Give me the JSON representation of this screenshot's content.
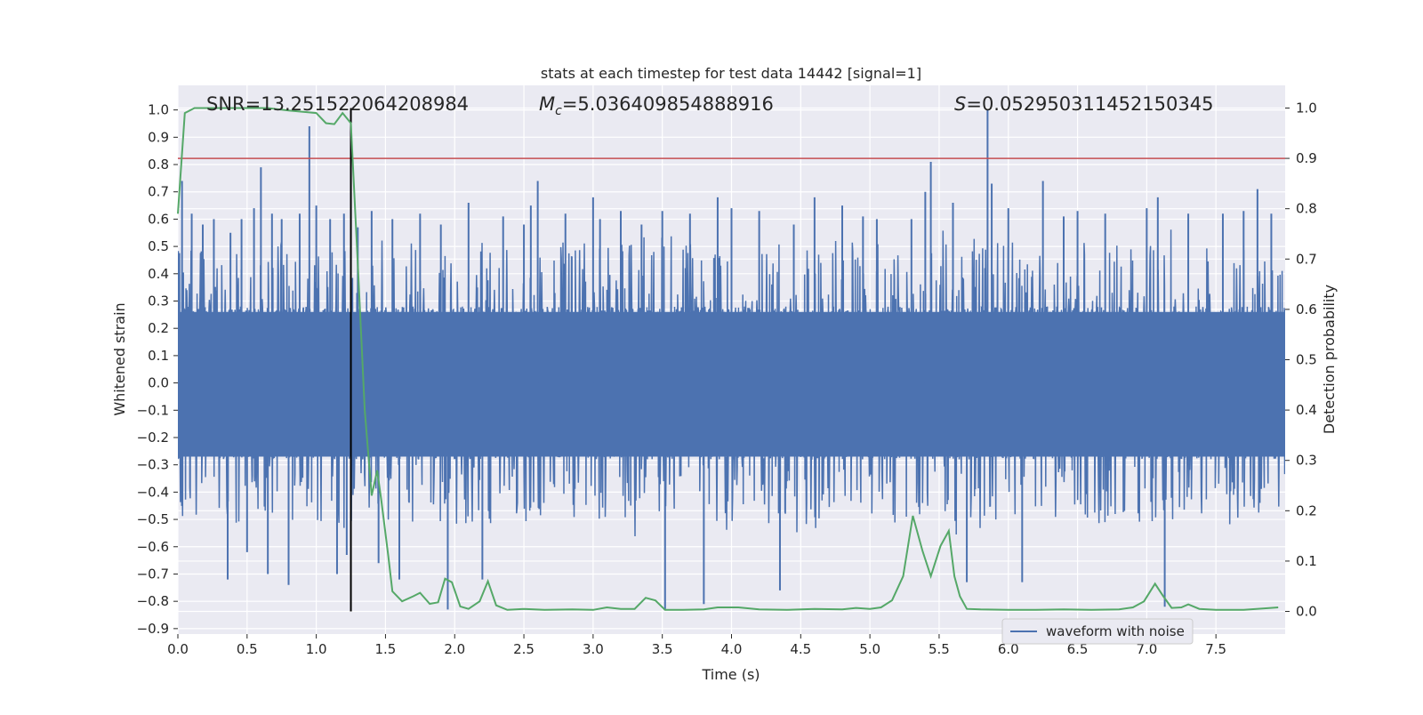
{
  "chart_data": {
    "type": "line",
    "title": "stats at each timestep for test data 14442 [signal=1]",
    "xlabel": "Time (s)",
    "ylabel": "Whitened strain",
    "y2label": "Detection probability",
    "xlim": [
      0,
      8.0
    ],
    "ylim": [
      -0.92,
      1.09
    ],
    "y2lim": [
      -0.045,
      1.045
    ],
    "xticks": [
      "0.0",
      "0.5",
      "1.0",
      "1.5",
      "2.0",
      "2.5",
      "3.0",
      "3.5",
      "4.0",
      "4.5",
      "5.0",
      "5.5",
      "6.0",
      "6.5",
      "7.0",
      "7.5"
    ],
    "yticks": [
      "1.0",
      "0.9",
      "0.8",
      "0.7",
      "0.6",
      "0.5",
      "0.4",
      "0.3",
      "0.2",
      "0.1",
      "0.0",
      "−0.1",
      "−0.2",
      "−0.3",
      "−0.4",
      "−0.5",
      "−0.6",
      "−0.7",
      "−0.8",
      "−0.9"
    ],
    "y2ticks": [
      "1.0",
      "0.9",
      "0.8",
      "0.7",
      "0.6",
      "0.5",
      "0.4",
      "0.3",
      "0.2",
      "0.1",
      "0.0"
    ],
    "grid": true,
    "legend_position": "lower-right",
    "annotations": {
      "snr": "SNR=13.251522064208984",
      "mc_symbol": "M",
      "mc_subscript": "c",
      "mc_value": "=5.036409854888916",
      "s_symbol": "S",
      "s_value": "=0.052950311452150345"
    },
    "threshold": {
      "value": 0.9,
      "axis": "right",
      "color": "#c44e52"
    },
    "event_time": 1.25,
    "series": [
      {
        "name": "waveform with noise",
        "color": "#4c72b0",
        "style": "dense noisy strain, core band about -0.28 to 0.27 with spikes",
        "spikes": [
          [
            0.03,
            0.74
          ],
          [
            0.1,
            0.62
          ],
          [
            0.18,
            0.58
          ],
          [
            0.26,
            0.6
          ],
          [
            0.36,
            -0.72
          ],
          [
            0.38,
            0.55
          ],
          [
            0.46,
            0.6
          ],
          [
            0.5,
            -0.62
          ],
          [
            0.55,
            0.64
          ],
          [
            0.6,
            0.79
          ],
          [
            0.65,
            -0.7
          ],
          [
            0.68,
            0.62
          ],
          [
            0.75,
            0.6
          ],
          [
            0.8,
            -0.74
          ],
          [
            0.88,
            0.62
          ],
          [
            0.95,
            0.94
          ],
          [
            1.0,
            0.65
          ],
          [
            1.1,
            0.6
          ],
          [
            1.15,
            -0.7
          ],
          [
            1.2,
            0.62
          ],
          [
            1.22,
            -0.63
          ],
          [
            1.3,
            0.57
          ],
          [
            1.4,
            0.63
          ],
          [
            1.45,
            -0.66
          ],
          [
            1.55,
            0.6
          ],
          [
            1.6,
            -0.72
          ],
          [
            1.75,
            0.62
          ],
          [
            1.9,
            0.58
          ],
          [
            1.95,
            -0.83
          ],
          [
            2.1,
            0.66
          ],
          [
            2.2,
            -0.72
          ],
          [
            2.35,
            0.61
          ],
          [
            2.5,
            0.58
          ],
          [
            2.55,
            0.65
          ],
          [
            2.6,
            0.74
          ],
          [
            2.8,
            0.62
          ],
          [
            3.0,
            0.68
          ],
          [
            3.05,
            0.6
          ],
          [
            3.2,
            0.63
          ],
          [
            3.35,
            0.58
          ],
          [
            3.5,
            0.63
          ],
          [
            3.52,
            -0.83
          ],
          [
            3.7,
            0.62
          ],
          [
            3.8,
            -0.81
          ],
          [
            3.9,
            0.68
          ],
          [
            4.0,
            0.64
          ],
          [
            4.2,
            0.63
          ],
          [
            4.35,
            -0.76
          ],
          [
            4.45,
            0.58
          ],
          [
            4.6,
            0.68
          ],
          [
            4.8,
            0.65
          ],
          [
            4.95,
            0.61
          ],
          [
            5.05,
            0.6
          ],
          [
            5.3,
            0.6
          ],
          [
            5.4,
            0.7
          ],
          [
            5.44,
            0.81
          ],
          [
            5.6,
            0.66
          ],
          [
            5.7,
            -0.73
          ],
          [
            5.85,
            1.0
          ],
          [
            5.88,
            0.73
          ],
          [
            6.0,
            0.64
          ],
          [
            6.1,
            -0.73
          ],
          [
            6.25,
            0.74
          ],
          [
            6.4,
            0.61
          ],
          [
            6.5,
            0.63
          ],
          [
            6.7,
            0.62
          ],
          [
            7.0,
            0.64
          ],
          [
            7.08,
            0.68
          ],
          [
            7.13,
            -0.82
          ],
          [
            7.3,
            0.62
          ],
          [
            7.55,
            0.62
          ],
          [
            7.7,
            0.63
          ],
          [
            7.8,
            0.71
          ],
          [
            7.9,
            0.62
          ]
        ]
      },
      {
        "name": "",
        "color": "#55a868",
        "axis": "right",
        "points": [
          [
            0.0,
            0.79
          ],
          [
            0.05,
            0.99
          ],
          [
            0.12,
            1.0
          ],
          [
            0.25,
            1.0
          ],
          [
            0.5,
            1.0
          ],
          [
            0.65,
            1.0
          ],
          [
            0.8,
            0.995
          ],
          [
            1.0,
            0.99
          ],
          [
            1.07,
            0.97
          ],
          [
            1.13,
            0.968
          ],
          [
            1.19,
            0.99
          ],
          [
            1.25,
            0.97
          ],
          [
            1.3,
            0.69
          ],
          [
            1.35,
            0.4
          ],
          [
            1.4,
            0.23
          ],
          [
            1.44,
            0.28
          ],
          [
            1.47,
            0.22
          ],
          [
            1.52,
            0.11
          ],
          [
            1.55,
            0.04
          ],
          [
            1.62,
            0.02
          ],
          [
            1.7,
            0.03
          ],
          [
            1.75,
            0.037
          ],
          [
            1.82,
            0.015
          ],
          [
            1.88,
            0.018
          ],
          [
            1.93,
            0.065
          ],
          [
            1.98,
            0.058
          ],
          [
            2.04,
            0.01
          ],
          [
            2.1,
            0.005
          ],
          [
            2.18,
            0.02
          ],
          [
            2.24,
            0.06
          ],
          [
            2.3,
            0.012
          ],
          [
            2.38,
            0.003
          ],
          [
            2.5,
            0.005
          ],
          [
            2.65,
            0.003
          ],
          [
            2.85,
            0.004
          ],
          [
            3.0,
            0.003
          ],
          [
            3.1,
            0.008
          ],
          [
            3.2,
            0.005
          ],
          [
            3.3,
            0.005
          ],
          [
            3.38,
            0.027
          ],
          [
            3.45,
            0.022
          ],
          [
            3.52,
            0.003
          ],
          [
            3.65,
            0.003
          ],
          [
            3.8,
            0.004
          ],
          [
            3.9,
            0.008
          ],
          [
            4.05,
            0.008
          ],
          [
            4.2,
            0.004
          ],
          [
            4.4,
            0.003
          ],
          [
            4.6,
            0.005
          ],
          [
            4.8,
            0.004
          ],
          [
            4.9,
            0.007
          ],
          [
            5.0,
            0.005
          ],
          [
            5.08,
            0.008
          ],
          [
            5.16,
            0.022
          ],
          [
            5.24,
            0.07
          ],
          [
            5.31,
            0.19
          ],
          [
            5.38,
            0.12
          ],
          [
            5.44,
            0.07
          ],
          [
            5.51,
            0.13
          ],
          [
            5.57,
            0.16
          ],
          [
            5.61,
            0.07
          ],
          [
            5.65,
            0.03
          ],
          [
            5.7,
            0.005
          ],
          [
            5.8,
            0.004
          ],
          [
            6.0,
            0.003
          ],
          [
            6.2,
            0.003
          ],
          [
            6.4,
            0.004
          ],
          [
            6.6,
            0.003
          ],
          [
            6.8,
            0.004
          ],
          [
            6.9,
            0.008
          ],
          [
            6.98,
            0.02
          ],
          [
            7.06,
            0.055
          ],
          [
            7.12,
            0.03
          ],
          [
            7.18,
            0.007
          ],
          [
            7.25,
            0.008
          ],
          [
            7.3,
            0.014
          ],
          [
            7.38,
            0.005
          ],
          [
            7.5,
            0.003
          ],
          [
            7.7,
            0.003
          ],
          [
            7.85,
            0.006
          ],
          [
            7.95,
            0.008
          ]
        ]
      }
    ]
  }
}
